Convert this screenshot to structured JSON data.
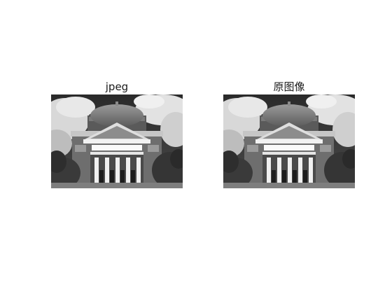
{
  "figure": {
    "panels": [
      {
        "title": "jpeg",
        "image": "grayscale-domed-building-photo"
      },
      {
        "title": "原图像",
        "image": "grayscale-domed-building-photo"
      }
    ]
  }
}
